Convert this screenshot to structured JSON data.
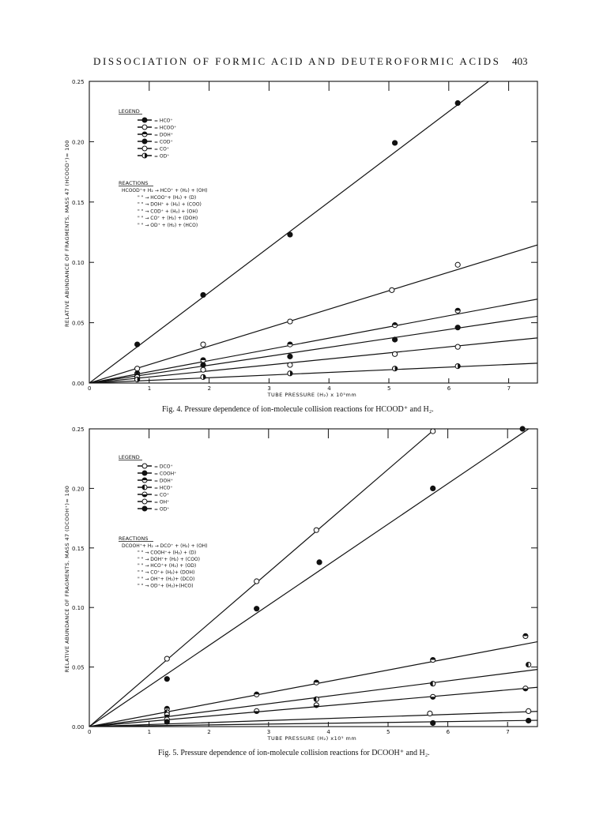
{
  "header": {
    "title": "DISSOCIATION OF FORMIC ACID AND DEUTEROFORMIC ACIDS",
    "page_number": "403"
  },
  "figures": [
    {
      "caption": "Fig. 4. Pressure dependence of ion-molecule collision reactions for HCOOD⁺ and H₂.",
      "legend_title": "LEGEND",
      "reactions_title": "REACTIONS",
      "reactions": [
        "HCOOD⁺+ H₂ → HCO⁺ + (H₂) + (OH)",
        "\" \" → HCOO⁺+ (H₂) + (D)",
        "\" \" → DOH⁺ + (H₂) + (COO)",
        "\" \" → COD⁺ + (H₂) + (OH)",
        "\" \" → CO⁺ + (H₂) + (DOH)",
        "\" \" → OD⁺ + (H₂) + (HCO)"
      ]
    },
    {
      "caption": "Fig. 5. Pressure dependence of ion-molecule collision reactions for DCOOH⁺ and H₂.",
      "legend_title": "LEGEND",
      "reactions_title": "REACTIONS",
      "reactions": [
        "DCOOH⁺+ H₂ → DCO⁺ + (H₂) + (OH)",
        "\" \" → COOH⁺+ (H₂) + (D)",
        "\" \" → DOH⁺+ (H₂) + (COO)",
        "\" \" → HCO⁺+ (H₂) + (OD)",
        "\" \" → CO⁺+ (H₂)+ (DOH)",
        "\" \" → OH⁺+ (H₂)+ (DCO)",
        "\" \" → OD⁺+ (H₂)+(HCO)"
      ]
    }
  ],
  "chart_data": [
    {
      "type": "scatter",
      "xlabel": "TUBE PRESSURE (H₂) x 10⁵mm",
      "ylabel": "RELATIVE ABUNDANCE OF FRAGMENTS, MASS 47 (HCOOD⁺)= 100",
      "xlim": [
        0,
        7.5
      ],
      "ylim": [
        0,
        0.25
      ],
      "xticks": [
        "0",
        "1",
        "2",
        "3",
        "4",
        "5",
        "6",
        "7"
      ],
      "yticks": [
        "0.00",
        "0.05",
        "0.10",
        "0.15",
        "0.20",
        "0.25"
      ],
      "grid": false,
      "legend_position": "top-left",
      "series": [
        {
          "name": "HCO⁺",
          "marker": "filled",
          "slope": 0.0375,
          "x": [
            0.8,
            1.9,
            3.35,
            5.1,
            6.15
          ],
          "y": [
            0.032,
            0.073,
            0.123,
            0.199,
            0.232
          ]
        },
        {
          "name": "HCOO⁺",
          "marker": "open",
          "slope": 0.0153,
          "x": [
            0.8,
            1.9,
            3.35,
            5.05,
            6.15
          ],
          "y": [
            0.012,
            0.032,
            0.051,
            0.077,
            0.098
          ]
        },
        {
          "name": "DOH⁺",
          "marker": "half-top",
          "slope": 0.0093,
          "x": [
            0.8,
            1.9,
            3.35,
            5.1,
            6.15
          ],
          "y": [
            0.008,
            0.019,
            0.032,
            0.048,
            0.06
          ]
        },
        {
          "name": "COD⁺",
          "marker": "filled",
          "slope": 0.0074,
          "x": [
            0.8,
            1.9,
            3.35,
            5.1,
            6.15
          ],
          "y": [
            0.006,
            0.015,
            0.022,
            0.036,
            0.046
          ]
        },
        {
          "name": "CO⁺",
          "marker": "open",
          "slope": 0.005,
          "x": [
            0.8,
            1.9,
            3.35,
            5.1,
            6.15
          ],
          "y": [
            0.005,
            0.011,
            0.015,
            0.024,
            0.03
          ]
        },
        {
          "name": "OD⁺",
          "marker": "half-right",
          "slope": 0.0022,
          "x": [
            0.8,
            1.9,
            3.35,
            5.1,
            6.15
          ],
          "y": [
            0.003,
            0.005,
            0.008,
            0.012,
            0.014
          ]
        }
      ]
    },
    {
      "type": "scatter",
      "xlabel": "TUBE PRESSURE (H₂) x10⁵ mm",
      "ylabel": "RELATIVE ABUNDANCE OF FRAGMENTS, MASS 47 (DCOOH⁺)= 100",
      "xlim": [
        0,
        7.5
      ],
      "ylim": [
        0,
        0.25
      ],
      "xticks": [
        "0",
        "1",
        "2",
        "3",
        "4",
        "5",
        "6",
        "7"
      ],
      "yticks": [
        "0.00",
        "0.05",
        "0.10",
        "0.15",
        "0.20",
        "0.25"
      ],
      "grid": false,
      "legend_position": "top-left",
      "series": [
        {
          "name": "DCO⁺",
          "marker": "open",
          "slope": 0.0432,
          "x": [
            1.3,
            2.8,
            3.8,
            5.75
          ],
          "y": [
            0.057,
            0.122,
            0.165,
            0.248
          ]
        },
        {
          "name": "COOH⁺",
          "marker": "filled",
          "slope": 0.034,
          "x": [
            1.3,
            2.8,
            3.85,
            5.75,
            7.25
          ],
          "y": [
            0.04,
            0.099,
            0.138,
            0.2,
            0.25
          ]
        },
        {
          "name": "DOH⁺",
          "marker": "half-top",
          "slope": 0.0095,
          "x": [
            1.3,
            2.8,
            3.8,
            5.75,
            7.3
          ],
          "y": [
            0.015,
            0.027,
            0.037,
            0.056,
            0.076
          ]
        },
        {
          "name": "HCO⁺",
          "marker": "half-left",
          "slope": 0.0064,
          "x": [
            1.3,
            3.8,
            5.75,
            7.35
          ],
          "y": [
            0.012,
            0.023,
            0.036,
            0.052
          ]
        },
        {
          "name": "CO⁺",
          "marker": "half-bottom",
          "slope": 0.0044,
          "x": [
            1.3,
            2.8,
            3.8,
            5.75,
            7.3
          ],
          "y": [
            0.01,
            0.013,
            0.018,
            0.025,
            0.032
          ]
        },
        {
          "name": "OH⁺",
          "marker": "open",
          "slope": 0.0017,
          "x": [
            1.3,
            5.7,
            7.35
          ],
          "y": [
            0.006,
            0.011,
            0.013
          ]
        },
        {
          "name": "OD⁺",
          "marker": "filled",
          "slope": 0.0007,
          "x": [
            1.3,
            5.75,
            7.35
          ],
          "y": [
            0.004,
            0.003,
            0.005
          ]
        }
      ]
    }
  ]
}
